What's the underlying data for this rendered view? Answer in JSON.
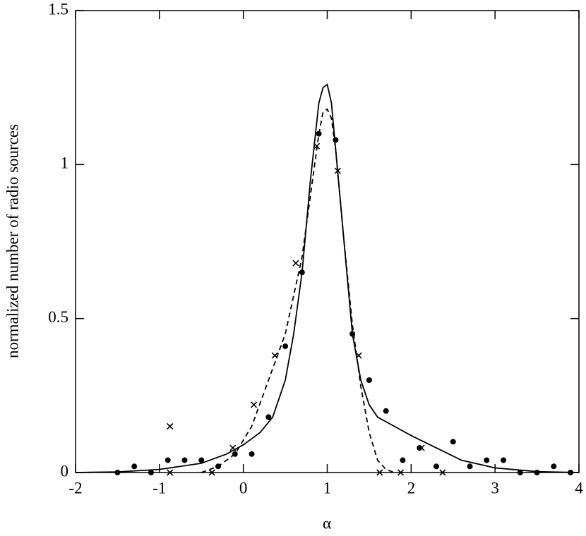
{
  "chart_data": {
    "type": "line",
    "x_label": "α",
    "y_label": "normalized number of radio sources",
    "xlim": [
      -2,
      4
    ],
    "xticks": [
      -2,
      -1,
      0,
      1,
      2,
      3,
      4
    ],
    "ylim": [
      0,
      1.5
    ],
    "yticks": [
      0,
      0.5,
      1,
      1.5
    ],
    "series": [
      {
        "color": "#000000",
        "style": "solid",
        "marker": "none",
        "x": [
          -2,
          -1.5,
          -1,
          -0.5,
          -0.2,
          0,
          0.2,
          0.35,
          0.5,
          0.6,
          0.7,
          0.8,
          0.9,
          0.95,
          1,
          1.05,
          1.1,
          1.2,
          1.3,
          1.4,
          1.5,
          1.6,
          1.8,
          2,
          2.3,
          2.6,
          3,
          3.5,
          4
        ],
        "values": [
          0,
          0.002,
          0.01,
          0.03,
          0.06,
          0.09,
          0.13,
          0.18,
          0.3,
          0.45,
          0.65,
          0.95,
          1.2,
          1.25,
          1.26,
          1.2,
          1.05,
          0.75,
          0.45,
          0.3,
          0.22,
          0.18,
          0.15,
          0.12,
          0.08,
          0.04,
          0.015,
          0.003,
          0
        ]
      },
      {
        "color": "#000000",
        "style": "dashed",
        "marker": "none",
        "x": [
          -0.5,
          -0.3,
          -0.1,
          0.1,
          0.3,
          0.5,
          0.7,
          0.8,
          0.9,
          0.95,
          1,
          1.05,
          1.1,
          1.2,
          1.3,
          1.4,
          1.5,
          1.6,
          1.7,
          1.8
        ],
        "values": [
          0,
          0.02,
          0.06,
          0.15,
          0.3,
          0.45,
          0.7,
          0.9,
          1.1,
          1.17,
          1.18,
          1.15,
          1.05,
          0.75,
          0.48,
          0.28,
          0.13,
          0.04,
          0.01,
          0
        ]
      },
      {
        "color": "#000000",
        "style": "none",
        "marker": "dot",
        "x": [
          -1.5,
          -1.3,
          -1.1,
          -0.9,
          -0.7,
          -0.5,
          -0.3,
          -0.1,
          0.1,
          0.3,
          0.5,
          0.7,
          0.9,
          1.1,
          1.3,
          1.5,
          1.7,
          1.9,
          2.1,
          2.3,
          2.5,
          2.7,
          2.9,
          3.1,
          3.3,
          3.5,
          3.7,
          3.9
        ],
        "values": [
          0,
          0.02,
          0,
          0.04,
          0.04,
          0.04,
          0.02,
          0.06,
          0.06,
          0.18,
          0.41,
          0.65,
          1.1,
          1.08,
          0.45,
          0.3,
          0.2,
          0.04,
          0.08,
          0.02,
          0.1,
          0.02,
          0.04,
          0.04,
          0,
          0,
          0.02,
          0
        ]
      },
      {
        "color": "#000000",
        "style": "none",
        "marker": "cross",
        "x": [
          -0.875,
          -0.875,
          -0.375,
          -0.125,
          0.125,
          0.375,
          0.625,
          0.875,
          1.125,
          1.375,
          1.625,
          1.875,
          2.125,
          2.375
        ],
        "values": [
          0,
          0.15,
          0,
          0.08,
          0.22,
          0.38,
          0.68,
          1.06,
          0.98,
          0.38,
          0,
          0,
          0.08,
          0
        ]
      }
    ]
  }
}
